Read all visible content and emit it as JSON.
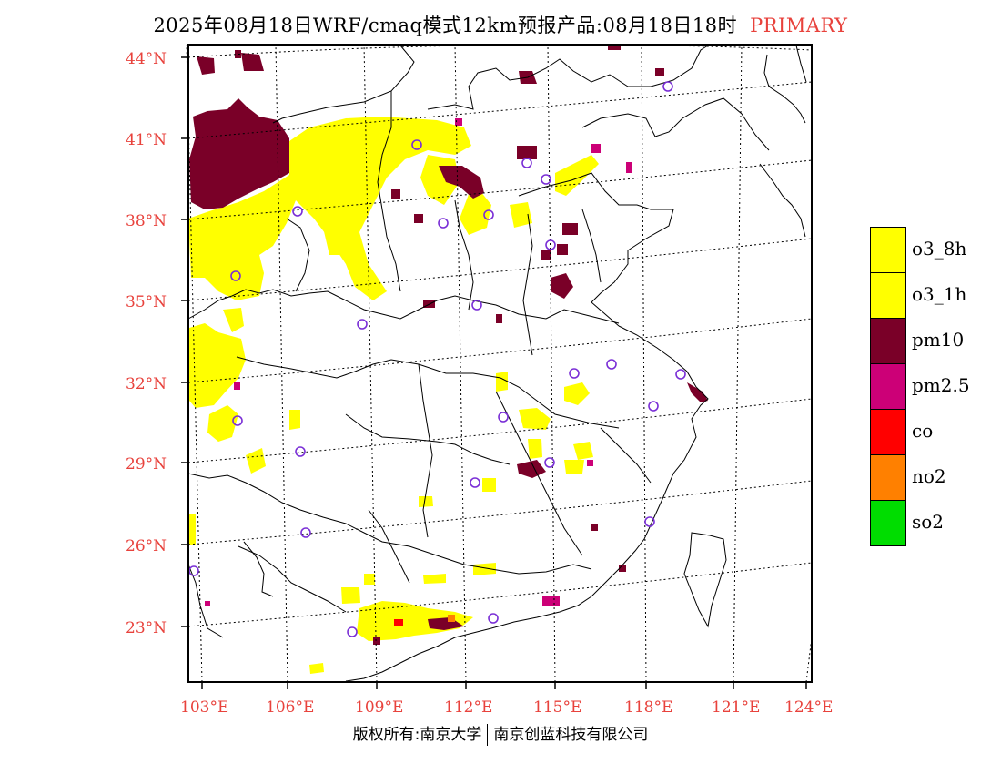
{
  "header": {
    "title": "2025年08月18日WRF/cmaq模式12km预报产品:08月18日18时",
    "highlight": "PRIMARY",
    "highlight_color": "#e8423c"
  },
  "axes": {
    "lat_labels": [
      "44°N",
      "41°N",
      "38°N",
      "35°N",
      "32°N",
      "29°N",
      "26°N",
      "23°N"
    ],
    "lon_labels": [
      "103°E",
      "106°E",
      "109°E",
      "112°E",
      "115°E",
      "118°E",
      "121°E",
      "124°E"
    ]
  },
  "legend": {
    "items": [
      {
        "label": "o3_8h",
        "color": "#ffff00"
      },
      {
        "label": "o3_1h",
        "color": "#ffff00"
      },
      {
        "label": "pm10",
        "color": "#7a0028"
      },
      {
        "label": "pm2.5",
        "color": "#cc0077"
      },
      {
        "label": "co",
        "color": "#ff0000"
      },
      {
        "label": "no2",
        "color": "#ff8000"
      },
      {
        "label": "so2",
        "color": "#00dd00"
      }
    ]
  },
  "footer": {
    "left": "版权所有:南京大学",
    "right": "南京创蓝科技有限公司"
  }
}
